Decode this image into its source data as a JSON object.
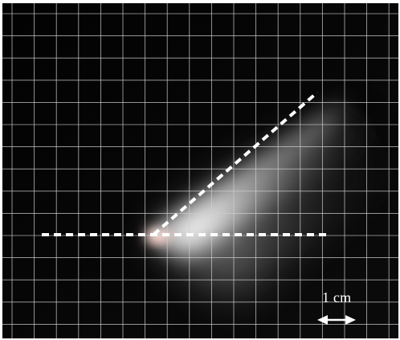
{
  "scale_bar": {
    "label": "1 cm"
  },
  "colors": {
    "background": "#050505",
    "grid": "#cfcfcf",
    "plume": "#f2f2f2",
    "marker_lines": "#ffffff",
    "source_glow": "#ffb7a8"
  }
}
